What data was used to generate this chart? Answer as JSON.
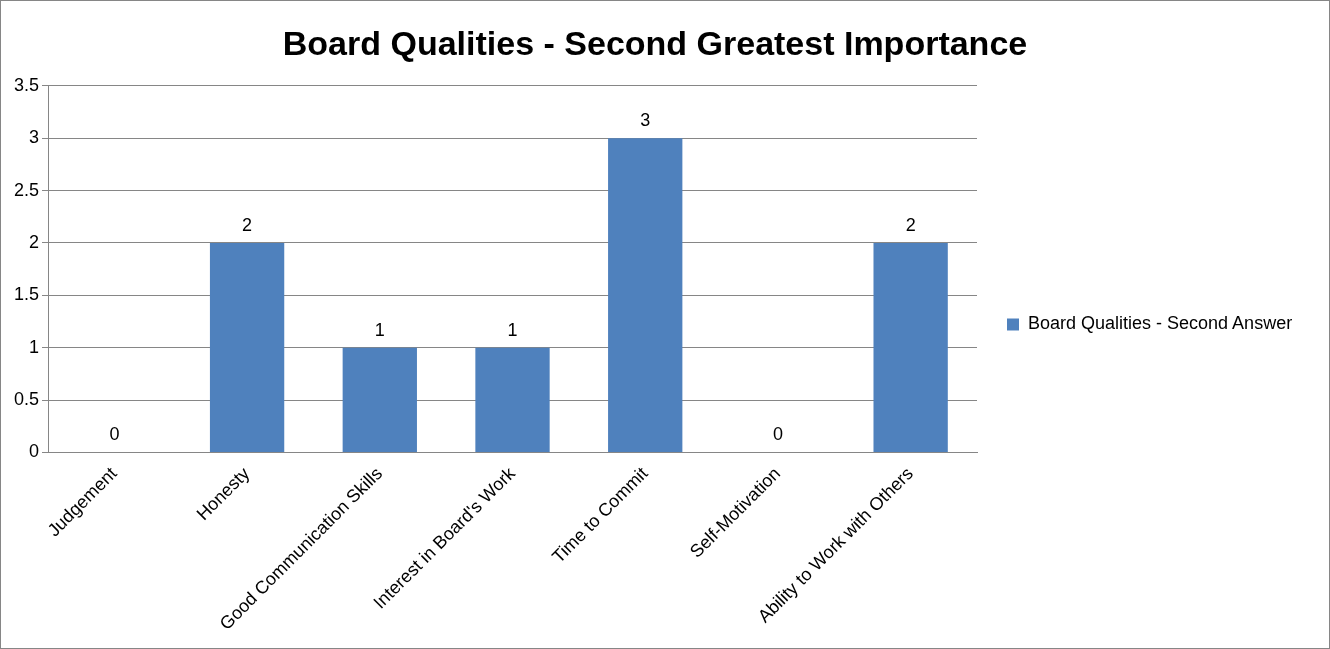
{
  "chart_data": {
    "type": "bar",
    "title": "Board Qualities - Second Greatest Importance",
    "categories": [
      "Judgement",
      "Honesty",
      "Good Communication Skills",
      "Interest in Board's Work",
      "Time to Commit",
      "Self-Motivation",
      "Ability to Work with Others"
    ],
    "series": [
      {
        "name": "Board Qualities - Second Answer",
        "color": "#4f81bd",
        "values": [
          0,
          2,
          1,
          1,
          3,
          0,
          2
        ]
      }
    ],
    "ylim": [
      0,
      3.5
    ],
    "yticks": [
      0,
      0.5,
      1,
      1.5,
      2,
      2.5,
      3,
      3.5
    ],
    "grid": "y",
    "legend": "right",
    "data_labels": true
  }
}
